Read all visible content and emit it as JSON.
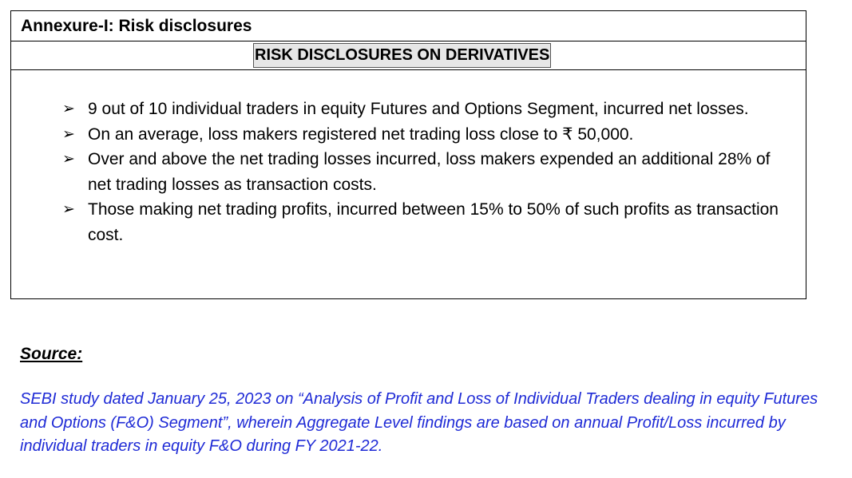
{
  "annexure": {
    "title": "Annexure-I: Risk disclosures",
    "heading": "RISK DISCLOSURES ON DERIVATIVES",
    "bullet_icon": "arrowhead-bullet",
    "bullets": [
      "9 out of 10 individual traders in equity Futures and Options Segment, incurred net losses.",
      "On an average, loss makers registered net trading loss close to ₹ 50,000.",
      "Over and above the net trading losses incurred, loss makers expended an additional 28% of net trading losses as transaction costs.",
      "Those making net trading profits, incurred between 15% to 50% of such profits as transaction cost."
    ]
  },
  "source": {
    "label": "Source:",
    "text": "SEBI study dated January 25, 2023 on “Analysis of Profit and Loss of Individual Traders dealing in equity Futures and Options (F&O) Segment”, wherein Aggregate Level findings are based on annual Profit/Loss incurred by individual traders in equity F&O during FY 2021-22.",
    "color": "#1f2bd6"
  }
}
